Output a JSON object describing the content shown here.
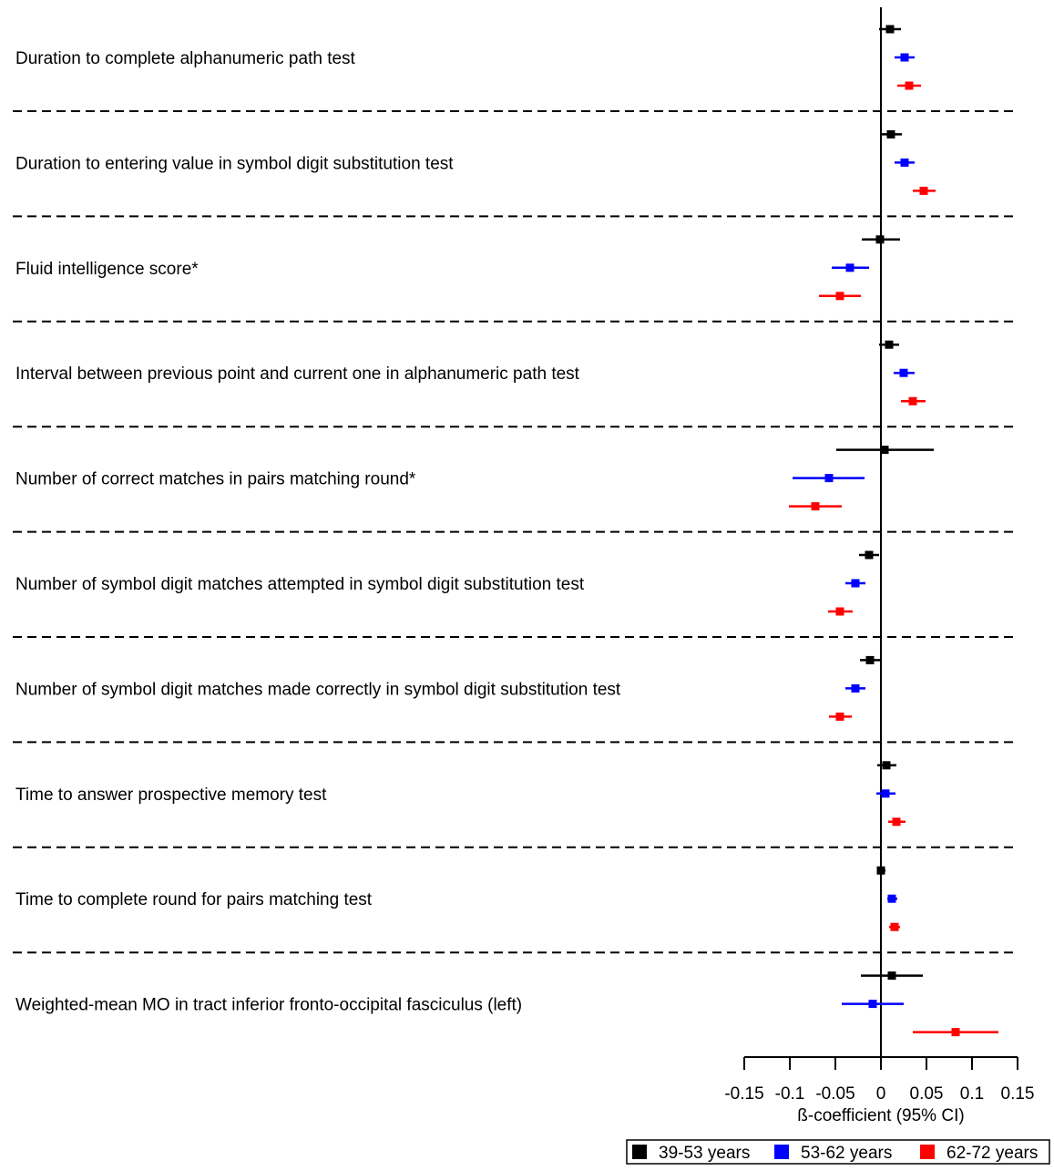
{
  "chart_data": {
    "type": "forest",
    "title": "",
    "xlabel": "ß-coefficient (95% CI)",
    "ylabel": "",
    "xlim": [
      -0.15,
      0.15
    ],
    "xticks": [
      -0.15,
      -0.1,
      -0.05,
      0,
      0.05,
      0.1,
      0.15
    ],
    "xtick_labels": [
      "-0.15",
      "-0.1",
      "-0.05",
      "0",
      "0.05",
      "0.1",
      "0.15"
    ],
    "grid": false,
    "legend_position": "bottom-right",
    "series": [
      {
        "name": "39-53 years",
        "color": "#000000"
      },
      {
        "name": "53-62 years",
        "color": "#0000ff"
      },
      {
        "name": "62-72 years",
        "color": "#ff0000"
      }
    ],
    "categories": [
      "Duration to complete alphanumeric path test",
      "Duration to entering value in symbol digit substitution test",
      "Fluid intelligence score*",
      "Interval between previous point and current one in alphanumeric path test",
      "Number of correct matches in pairs matching round*",
      "Number of symbol digit matches attempted in symbol digit substitution test",
      "Number of symbol digit matches made correctly in symbol digit substitution test",
      "Time to answer prospective memory test",
      "Time to complete round for pairs matching test",
      "Weighted-mean MO in tract inferior fronto-occipital fasciculus (left)"
    ],
    "estimates": [
      [
        [
          0.01,
          -0.002,
          0.022
        ],
        [
          0.026,
          0.015,
          0.037
        ],
        [
          0.031,
          0.018,
          0.044
        ]
      ],
      [
        [
          0.011,
          0.0,
          0.023
        ],
        [
          0.026,
          0.015,
          0.037
        ],
        [
          0.047,
          0.035,
          0.06
        ]
      ],
      [
        [
          -0.001,
          -0.021,
          0.021
        ],
        [
          -0.034,
          -0.054,
          -0.013
        ],
        [
          -0.045,
          -0.068,
          -0.022
        ]
      ],
      [
        [
          0.009,
          -0.002,
          0.02
        ],
        [
          0.025,
          0.014,
          0.037
        ],
        [
          0.035,
          0.022,
          0.049
        ]
      ],
      [
        [
          0.004,
          -0.049,
          0.058
        ],
        [
          -0.057,
          -0.097,
          -0.018
        ],
        [
          -0.072,
          -0.101,
          -0.043
        ]
      ],
      [
        [
          -0.013,
          -0.024,
          -0.002
        ],
        [
          -0.028,
          -0.039,
          -0.017
        ],
        [
          -0.045,
          -0.058,
          -0.031
        ]
      ],
      [
        [
          -0.012,
          -0.023,
          -0.001
        ],
        [
          -0.028,
          -0.039,
          -0.017
        ],
        [
          -0.045,
          -0.057,
          -0.032
        ]
      ],
      [
        [
          0.006,
          -0.004,
          0.017
        ],
        [
          0.005,
          -0.005,
          0.016
        ],
        [
          0.017,
          0.008,
          0.027
        ]
      ],
      [
        [
          0.0,
          -0.004,
          0.005
        ],
        [
          0.012,
          0.007,
          0.018
        ],
        [
          0.015,
          0.009,
          0.021
        ]
      ],
      [
        [
          0.012,
          -0.022,
          0.046
        ],
        [
          -0.009,
          -0.043,
          0.025
        ],
        [
          0.082,
          0.035,
          0.129
        ]
      ]
    ]
  }
}
